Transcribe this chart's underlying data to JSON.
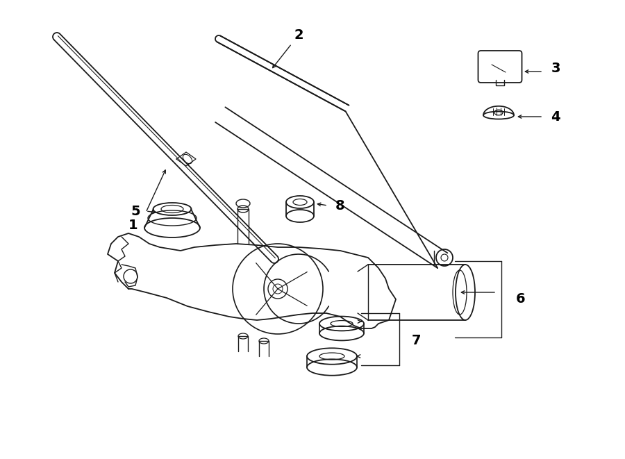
{
  "background_color": "#ffffff",
  "line_color": "#1a1a1a",
  "label_color": "#000000",
  "figsize": [
    9.0,
    6.61
  ],
  "dpi": 100,
  "xlim": [
    0,
    900
  ],
  "ylim": [
    0,
    661
  ]
}
